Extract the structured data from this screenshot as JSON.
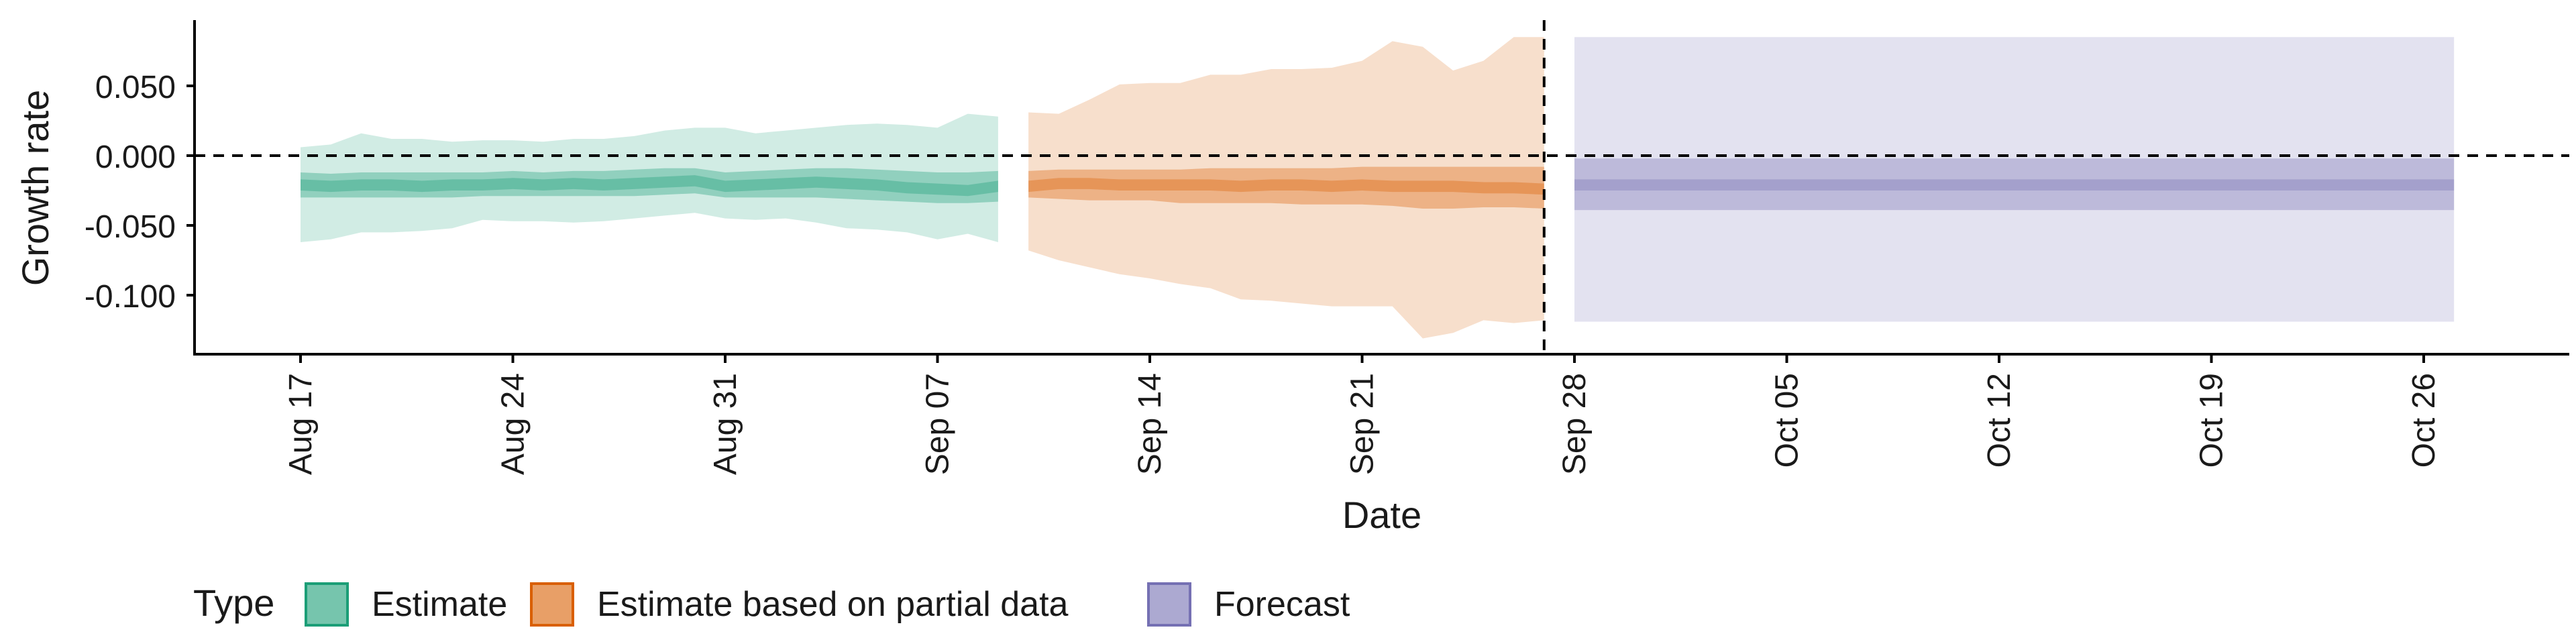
{
  "chart_data": {
    "type": "area",
    "xlabel": "Date",
    "ylabel": "Growth rate",
    "ylim": [
      -0.142,
      0.097
    ],
    "xlim_days": [
      "2020-08-12",
      "2020-10-30"
    ],
    "x_ticks": [
      {
        "date": "2020-08-17",
        "label": "Aug 17"
      },
      {
        "date": "2020-08-24",
        "label": "Aug 24"
      },
      {
        "date": "2020-08-31",
        "label": "Aug 31"
      },
      {
        "date": "2020-09-07",
        "label": "Sep 07"
      },
      {
        "date": "2020-09-14",
        "label": "Sep 14"
      },
      {
        "date": "2020-09-21",
        "label": "Sep 21"
      },
      {
        "date": "2020-09-28",
        "label": "Sep 28"
      },
      {
        "date": "2020-10-05",
        "label": "Oct 05"
      },
      {
        "date": "2020-10-12",
        "label": "Oct 12"
      },
      {
        "date": "2020-10-19",
        "label": "Oct 19"
      },
      {
        "date": "2020-10-26",
        "label": "Oct 26"
      }
    ],
    "y_ticks": [
      {
        "value": 0.05,
        "label": "0.050"
      },
      {
        "value": 0.0,
        "label": "0.000"
      },
      {
        "value": -0.05,
        "label": "-0.050"
      },
      {
        "value": -0.1,
        "label": "-0.100"
      }
    ],
    "reference_lines": {
      "horizontal_y": 0.0,
      "vertical_date": "2020-09-27",
      "style": "dashed"
    },
    "legend": {
      "title": "Type",
      "position": "bottom",
      "entries": [
        {
          "label": "Estimate",
          "color": "#1b9e77"
        },
        {
          "label": "Estimate based on partial data",
          "color": "#d95f02"
        },
        {
          "label": "Forecast",
          "color": "#7570b3"
        }
      ]
    },
    "series": [
      {
        "name": "Estimate",
        "color": "#1b9e77",
        "x": [
          "2020-08-17",
          "2020-08-18",
          "2020-08-19",
          "2020-08-20",
          "2020-08-21",
          "2020-08-22",
          "2020-08-23",
          "2020-08-24",
          "2020-08-25",
          "2020-08-26",
          "2020-08-27",
          "2020-08-28",
          "2020-08-29",
          "2020-08-30",
          "2020-08-31",
          "2020-09-01",
          "2020-09-02",
          "2020-09-03",
          "2020-09-04",
          "2020-09-05",
          "2020-09-06",
          "2020-09-07",
          "2020-09-08",
          "2020-09-09"
        ],
        "median": [
          -0.021,
          -0.022,
          -0.021,
          -0.021,
          -0.022,
          -0.021,
          -0.021,
          -0.02,
          -0.021,
          -0.02,
          -0.021,
          -0.02,
          -0.019,
          -0.018,
          -0.022,
          -0.021,
          -0.02,
          -0.019,
          -0.02,
          -0.021,
          -0.023,
          -0.024,
          -0.025,
          -0.022
        ],
        "lower_90": [
          -0.062,
          -0.06,
          -0.055,
          -0.055,
          -0.054,
          -0.052,
          -0.046,
          -0.047,
          -0.047,
          -0.048,
          -0.047,
          -0.045,
          -0.043,
          -0.041,
          -0.045,
          -0.046,
          -0.045,
          -0.048,
          -0.052,
          -0.053,
          -0.055,
          -0.06,
          -0.056,
          -0.062
        ],
        "upper_90": [
          0.006,
          0.008,
          0.016,
          0.012,
          0.012,
          0.01,
          0.011,
          0.011,
          0.01,
          0.012,
          0.012,
          0.014,
          0.018,
          0.02,
          0.02,
          0.016,
          0.018,
          0.02,
          0.022,
          0.023,
          0.022,
          0.02,
          0.03,
          0.028
        ],
        "lower_50": [
          -0.03,
          -0.03,
          -0.03,
          -0.03,
          -0.03,
          -0.03,
          -0.029,
          -0.029,
          -0.029,
          -0.029,
          -0.029,
          -0.029,
          -0.028,
          -0.027,
          -0.03,
          -0.03,
          -0.03,
          -0.03,
          -0.031,
          -0.032,
          -0.033,
          -0.034,
          -0.034,
          -0.033
        ],
        "upper_50": [
          -0.012,
          -0.013,
          -0.012,
          -0.012,
          -0.012,
          -0.012,
          -0.012,
          -0.011,
          -0.012,
          -0.011,
          -0.011,
          -0.01,
          -0.009,
          -0.009,
          -0.012,
          -0.011,
          -0.01,
          -0.009,
          -0.009,
          -0.01,
          -0.011,
          -0.012,
          -0.012,
          -0.011
        ]
      },
      {
        "name": "Estimate based on partial data",
        "color": "#d95f02",
        "x": [
          "2020-09-10",
          "2020-09-11",
          "2020-09-12",
          "2020-09-13",
          "2020-09-14",
          "2020-09-15",
          "2020-09-16",
          "2020-09-17",
          "2020-09-18",
          "2020-09-19",
          "2020-09-20",
          "2020-09-21",
          "2020-09-22",
          "2020-09-23",
          "2020-09-24",
          "2020-09-25",
          "2020-09-26",
          "2020-09-27"
        ],
        "median": [
          -0.022,
          -0.02,
          -0.02,
          -0.021,
          -0.021,
          -0.021,
          -0.021,
          -0.022,
          -0.021,
          -0.021,
          -0.022,
          -0.021,
          -0.022,
          -0.022,
          -0.022,
          -0.023,
          -0.023,
          -0.024
        ],
        "lower_90": [
          -0.068,
          -0.075,
          -0.08,
          -0.085,
          -0.088,
          -0.092,
          -0.095,
          -0.103,
          -0.104,
          -0.106,
          -0.108,
          -0.108,
          -0.108,
          -0.131,
          -0.127,
          -0.118,
          -0.12,
          -0.118
        ],
        "upper_90": [
          0.031,
          0.03,
          0.04,
          0.051,
          0.052,
          0.052,
          0.058,
          0.058,
          0.062,
          0.062,
          0.063,
          0.068,
          0.082,
          0.078,
          0.061,
          0.068,
          0.085,
          0.085
        ],
        "lower_50": [
          -0.03,
          -0.031,
          -0.032,
          -0.032,
          -0.032,
          -0.034,
          -0.034,
          -0.034,
          -0.034,
          -0.035,
          -0.035,
          -0.035,
          -0.036,
          -0.038,
          -0.038,
          -0.037,
          -0.037,
          -0.038
        ],
        "upper_50": [
          -0.011,
          -0.01,
          -0.01,
          -0.01,
          -0.01,
          -0.01,
          -0.009,
          -0.009,
          -0.009,
          -0.009,
          -0.009,
          -0.008,
          -0.008,
          -0.008,
          -0.008,
          -0.008,
          -0.008,
          -0.008
        ]
      },
      {
        "name": "Forecast",
        "color": "#7570b3",
        "x": [
          "2020-09-28",
          "2020-10-27"
        ],
        "median": [
          -0.021,
          -0.021
        ],
        "lower_90": [
          -0.119,
          -0.119
        ],
        "upper_90": [
          0.085,
          0.085
        ],
        "lower_50": [
          -0.039,
          -0.039
        ],
        "upper_50": [
          -0.002,
          -0.002
        ]
      }
    ]
  }
}
